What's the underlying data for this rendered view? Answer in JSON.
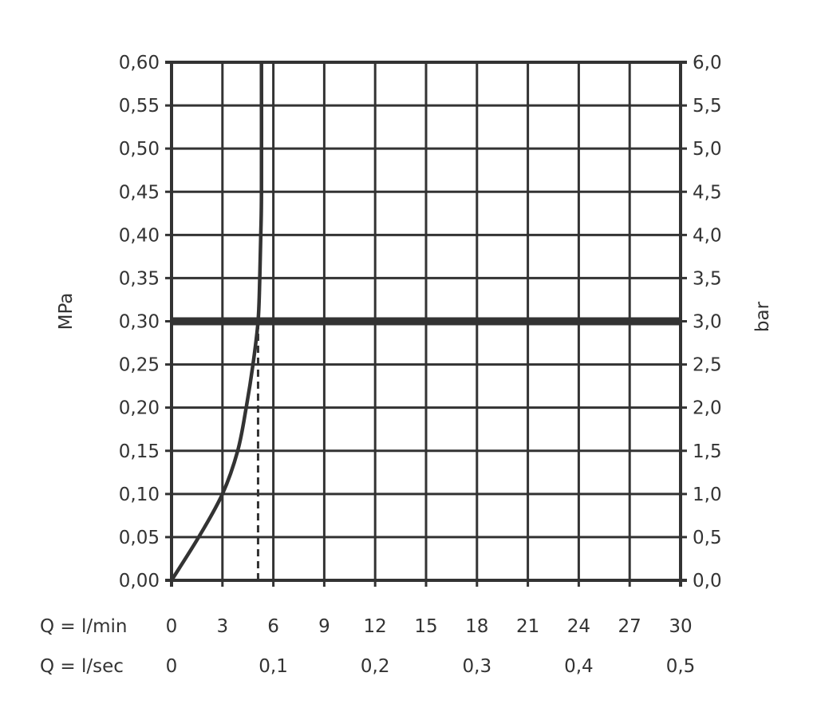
{
  "chart_data": {
    "type": "line",
    "title": "",
    "ylabel_left": "MPa",
    "ylabel_right": "bar",
    "x_row_labels": [
      "Q = l/min",
      "Q = l/sec"
    ],
    "xlim": [
      0,
      30
    ],
    "ylim_left": [
      0,
      0.6
    ],
    "ylim_right": [
      0,
      6
    ],
    "grid": true,
    "x_ticks_lmin": [
      "0",
      "3",
      "6",
      "9",
      "12",
      "15",
      "18",
      "21",
      "24",
      "27",
      "30"
    ],
    "x_ticks_lsec": [
      {
        "at": 0,
        "label": "0"
      },
      {
        "at": 6,
        "label": "0,1"
      },
      {
        "at": 12,
        "label": "0,2"
      },
      {
        "at": 18,
        "label": "0,3"
      },
      {
        "at": 24,
        "label": "0,4"
      },
      {
        "at": 30,
        "label": "0,5"
      }
    ],
    "y_ticks_left": [
      "0,00",
      "0,05",
      "0,10",
      "0,15",
      "0,20",
      "0,25",
      "0,30",
      "0,35",
      "0,40",
      "0,45",
      "0,50",
      "0,55",
      "0,60"
    ],
    "y_ticks_right": [
      "0,0",
      "0,5",
      "1,0",
      "1,5",
      "2,0",
      "2,5",
      "3,0",
      "3,5",
      "4,0",
      "4,5",
      "5,0",
      "5,5",
      "6,0"
    ],
    "series": [
      {
        "x": [
          0,
          1.6,
          3.0,
          3.9,
          4.4,
          4.8,
          5.1,
          5.2,
          5.26,
          5.3,
          5.3
        ],
        "y": [
          0,
          0.05,
          0.1,
          0.15,
          0.2,
          0.25,
          0.3,
          0.35,
          0.4,
          0.45,
          0.6
        ]
      }
    ],
    "reference_line_pressure": 0.3,
    "dashed_flow_marker": {
      "x": 5.1,
      "y_from": 0,
      "y_to": 0.3
    },
    "colors": {
      "ink": "#333333"
    }
  }
}
